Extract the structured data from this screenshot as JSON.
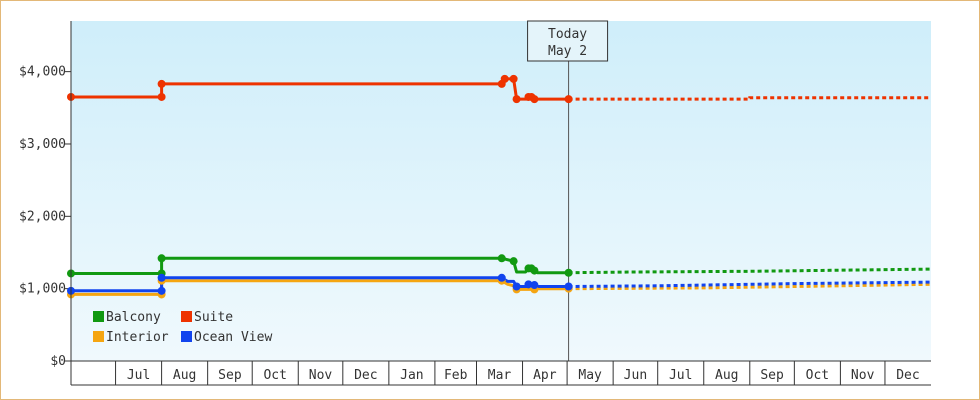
{
  "chart_data": {
    "type": "line",
    "title": "",
    "xlabel": "",
    "ylabel": "",
    "y_ticks": [
      "$0",
      "$1,000",
      "$2,000",
      "$3,000",
      "$4,000"
    ],
    "ylim": [
      0,
      4700
    ],
    "x_domain": [
      "2024-06-01",
      "2026-01-01"
    ],
    "x_ticks": [
      {
        "label": "Jul",
        "start": "2024-07-01",
        "end": "2024-08-01"
      },
      {
        "label": "Aug",
        "start": "2024-08-01",
        "end": "2024-09-01"
      },
      {
        "label": "Sep",
        "start": "2024-09-01",
        "end": "2024-10-01"
      },
      {
        "label": "Oct",
        "start": "2024-10-01",
        "end": "2024-11-01"
      },
      {
        "label": "Nov",
        "start": "2024-11-01",
        "end": "2024-12-01"
      },
      {
        "label": "Dec",
        "start": "2024-12-01",
        "end": "2025-01-01"
      },
      {
        "label": "Jan",
        "start": "2025-01-01",
        "end": "2025-02-01"
      },
      {
        "label": "Feb",
        "start": "2025-02-01",
        "end": "2025-03-01"
      },
      {
        "label": "Mar",
        "start": "2025-03-01",
        "end": "2025-04-01"
      },
      {
        "label": "Apr",
        "start": "2025-04-01",
        "end": "2025-05-01"
      },
      {
        "label": "May",
        "start": "2025-05-01",
        "end": "2025-06-01"
      },
      {
        "label": "Jun",
        "start": "2025-06-01",
        "end": "2025-07-01"
      },
      {
        "label": "Jul",
        "start": "2025-07-01",
        "end": "2025-08-01"
      },
      {
        "label": "Aug",
        "start": "2025-08-01",
        "end": "2025-09-01"
      },
      {
        "label": "Sep",
        "start": "2025-09-01",
        "end": "2025-10-01"
      },
      {
        "label": "Oct",
        "start": "2025-10-01",
        "end": "2025-11-01"
      },
      {
        "label": "Nov",
        "start": "2025-11-01",
        "end": "2025-12-01"
      },
      {
        "label": "Dec",
        "start": "2025-12-01",
        "end": "2026-01-01"
      }
    ],
    "today": {
      "line1": "Today",
      "line2": "May 2",
      "date": "2025-05-02"
    },
    "legend": {
      "placement": "bottom-left"
    },
    "series": [
      {
        "name": "Suite",
        "color": "#ee3300",
        "points": [
          [
            "2024-06-01",
            3650
          ],
          [
            "2024-08-01",
            3650
          ],
          [
            "2024-08-01",
            3830
          ],
          [
            "2025-03-18",
            3830
          ],
          [
            "2025-03-20",
            3900
          ],
          [
            "2025-03-26",
            3900
          ],
          [
            "2025-03-28",
            3620
          ],
          [
            "2025-04-05",
            3620
          ],
          [
            "2025-04-07",
            3650
          ],
          [
            "2025-04-09",
            3650
          ],
          [
            "2025-04-11",
            3620
          ],
          [
            "2025-05-02",
            3620
          ]
        ],
        "forecast": [
          [
            "2025-05-02",
            3620
          ],
          [
            "2025-09-01",
            3620
          ],
          [
            "2025-09-01",
            3640
          ],
          [
            "2026-01-01",
            3640
          ]
        ]
      },
      {
        "name": "Balcony",
        "color": "#119911",
        "points": [
          [
            "2024-06-01",
            1210
          ],
          [
            "2024-08-01",
            1210
          ],
          [
            "2024-08-01",
            1420
          ],
          [
            "2025-03-18",
            1420
          ],
          [
            "2025-03-26",
            1380
          ],
          [
            "2025-03-28",
            1230
          ],
          [
            "2025-04-03",
            1230
          ],
          [
            "2025-04-05",
            1280
          ],
          [
            "2025-04-09",
            1280
          ],
          [
            "2025-04-11",
            1220
          ],
          [
            "2025-05-02",
            1220
          ]
        ],
        "forecast": [
          [
            "2025-05-02",
            1220
          ],
          [
            "2025-06-15",
            1230
          ],
          [
            "2025-09-01",
            1240
          ],
          [
            "2026-01-01",
            1270
          ]
        ]
      },
      {
        "name": "Interior",
        "color": "#f5a511",
        "points": [
          [
            "2024-06-01",
            920
          ],
          [
            "2024-08-01",
            920
          ],
          [
            "2024-08-01",
            1110
          ],
          [
            "2025-03-18",
            1110
          ],
          [
            "2025-03-22",
            1060
          ],
          [
            "2025-03-26",
            1040
          ],
          [
            "2025-03-28",
            990
          ],
          [
            "2025-04-09",
            990
          ],
          [
            "2025-04-11",
            1000
          ],
          [
            "2025-05-02",
            1000
          ]
        ],
        "forecast": [
          [
            "2025-05-02",
            1000
          ],
          [
            "2025-08-01",
            1010
          ],
          [
            "2025-11-01",
            1040
          ],
          [
            "2026-01-01",
            1060
          ]
        ]
      },
      {
        "name": "Ocean View",
        "color": "#1144ee",
        "points": [
          [
            "2024-06-01",
            970
          ],
          [
            "2024-08-01",
            970
          ],
          [
            "2024-08-01",
            1150
          ],
          [
            "2025-03-18",
            1150
          ],
          [
            "2025-03-22",
            1100
          ],
          [
            "2025-03-26",
            1100
          ],
          [
            "2025-03-28",
            1030
          ],
          [
            "2025-04-05",
            1030
          ],
          [
            "2025-04-07",
            1060
          ],
          [
            "2025-04-09",
            1060
          ],
          [
            "2025-04-11",
            1030
          ],
          [
            "2025-05-02",
            1030
          ]
        ],
        "forecast": [
          [
            "2025-05-02",
            1030
          ],
          [
            "2025-07-01",
            1040
          ],
          [
            "2025-10-01",
            1070
          ],
          [
            "2026-01-01",
            1090
          ]
        ]
      }
    ],
    "markers": [
      {
        "series": "Suite",
        "points": [
          [
            "2024-06-01",
            3650
          ],
          [
            "2024-08-01",
            3650
          ],
          [
            "2024-08-01",
            3830
          ],
          [
            "2025-03-18",
            3830
          ],
          [
            "2025-03-20",
            3900
          ],
          [
            "2025-03-26",
            3900
          ],
          [
            "2025-03-28",
            3620
          ],
          [
            "2025-04-05",
            3650
          ],
          [
            "2025-04-07",
            3650
          ],
          [
            "2025-04-09",
            3620
          ],
          [
            "2025-05-02",
            3620
          ]
        ]
      },
      {
        "series": "Balcony",
        "points": [
          [
            "2024-06-01",
            1210
          ],
          [
            "2024-08-01",
            1210
          ],
          [
            "2024-08-01",
            1420
          ],
          [
            "2025-03-18",
            1420
          ],
          [
            "2025-03-26",
            1380
          ],
          [
            "2025-04-05",
            1280
          ],
          [
            "2025-04-07",
            1280
          ],
          [
            "2025-04-09",
            1250
          ],
          [
            "2025-05-02",
            1220
          ]
        ]
      },
      {
        "series": "Interior",
        "points": [
          [
            "2024-06-01",
            920
          ],
          [
            "2024-08-01",
            920
          ],
          [
            "2024-08-01",
            1110
          ],
          [
            "2025-03-18",
            1110
          ],
          [
            "2025-03-28",
            990
          ],
          [
            "2025-04-09",
            990
          ],
          [
            "2025-05-02",
            1000
          ]
        ]
      },
      {
        "series": "Ocean View",
        "points": [
          [
            "2024-06-01",
            970
          ],
          [
            "2024-08-01",
            970
          ],
          [
            "2024-08-01",
            1150
          ],
          [
            "2025-03-18",
            1150
          ],
          [
            "2025-03-28",
            1030
          ],
          [
            "2025-04-05",
            1060
          ],
          [
            "2025-04-09",
            1050
          ],
          [
            "2025-05-02",
            1030
          ]
        ]
      }
    ],
    "legend_items": [
      {
        "name": "Balcony",
        "color": "#119911"
      },
      {
        "name": "Suite",
        "color": "#ee3300"
      },
      {
        "name": "Interior",
        "color": "#f5a511"
      },
      {
        "name": "Ocean View",
        "color": "#1144ee"
      }
    ],
    "colors": {
      "plot_top": "#cfeefa",
      "plot_bottom": "#f0f9fd",
      "axis": "#333333",
      "today_line": "#555555",
      "border": "#e3b878"
    }
  }
}
